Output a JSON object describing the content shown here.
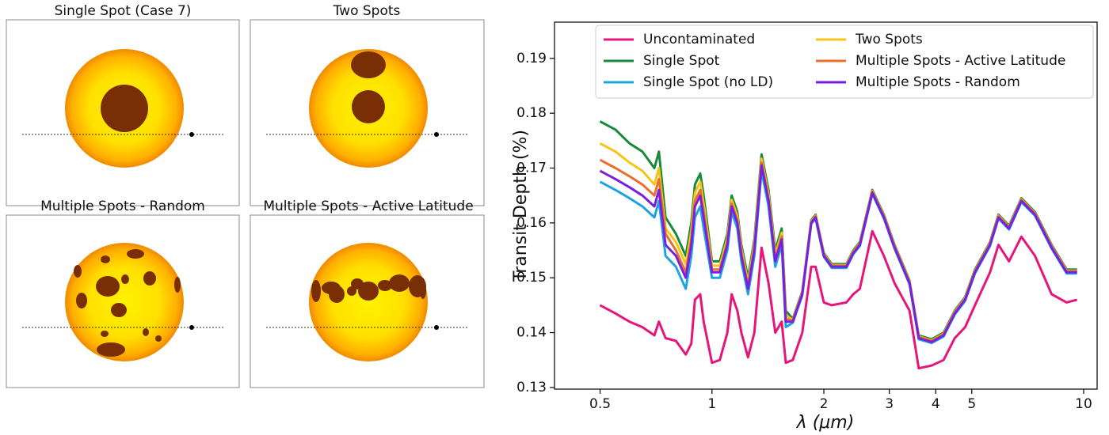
{
  "panels": [
    {
      "title": "Single Spot (Case 7)"
    },
    {
      "title": "Two Spots"
    },
    {
      "title": "Multiple Spots - Random"
    },
    {
      "title": "Multiple Spots - Active Latitude"
    }
  ],
  "chart_data": {
    "type": "line",
    "xlabel": "λ (μm)",
    "ylabel": "Transit Depth (%)",
    "xscale": "log",
    "xlim": [
      0.377,
      10.87
    ],
    "ylim": [
      0.1297,
      0.1966
    ],
    "xticks": [
      0.5,
      1,
      2,
      3,
      4,
      5,
      10
    ],
    "yticks": [
      0.13,
      0.14,
      0.15,
      0.16,
      0.17,
      0.18,
      0.19
    ],
    "legend": "upper right",
    "x": [
      0.5,
      0.55,
      0.6,
      0.65,
      0.7,
      0.72,
      0.75,
      0.8,
      0.85,
      0.88,
      0.9,
      0.93,
      0.95,
      1.0,
      1.05,
      1.1,
      1.13,
      1.17,
      1.2,
      1.25,
      1.3,
      1.36,
      1.42,
      1.48,
      1.54,
      1.58,
      1.65,
      1.75,
      1.85,
      1.9,
      2.0,
      2.1,
      2.3,
      2.4,
      2.5,
      2.7,
      2.9,
      3.1,
      3.4,
      3.6,
      3.9,
      4.2,
      4.5,
      4.8,
      5.1,
      5.6,
      5.9,
      6.3,
      6.8,
      7.4,
      8.2,
      9.0,
      9.6
    ],
    "series": [
      {
        "name": "Uncontaminated",
        "color": "#e6157a",
        "values": [
          0.145,
          0.1435,
          0.142,
          0.141,
          0.1395,
          0.142,
          0.139,
          0.1385,
          0.136,
          0.138,
          0.146,
          0.147,
          0.142,
          0.1345,
          0.135,
          0.14,
          0.147,
          0.144,
          0.14,
          0.1355,
          0.14,
          0.1555,
          0.149,
          0.14,
          0.142,
          0.1345,
          0.135,
          0.14,
          0.152,
          0.152,
          0.1455,
          0.145,
          0.1455,
          0.147,
          0.148,
          0.1585,
          0.154,
          0.149,
          0.144,
          0.1335,
          0.134,
          0.135,
          0.139,
          0.141,
          0.145,
          0.151,
          0.156,
          0.153,
          0.1575,
          0.154,
          0.147,
          0.1455,
          0.146
        ]
      },
      {
        "name": "Single Spot (no LD)",
        "color": "#1ca3e0",
        "values": [
          0.1675,
          0.166,
          0.1645,
          0.163,
          0.161,
          0.164,
          0.154,
          0.152,
          0.148,
          0.154,
          0.161,
          0.163,
          0.159,
          0.15,
          0.15,
          0.155,
          0.162,
          0.159,
          0.153,
          0.147,
          0.154,
          0.1695,
          0.163,
          0.152,
          0.156,
          0.141,
          0.1418,
          0.1468,
          0.1598,
          0.1608,
          0.1538,
          0.1518,
          0.1518,
          0.1543,
          0.1558,
          0.1653,
          0.1608,
          0.1553,
          0.1488,
          0.1388,
          0.1381,
          0.1393,
          0.1433,
          0.1458,
          0.1508,
          0.1558,
          0.1608,
          0.1588,
          0.1638,
          0.1613,
          0.1553,
          0.1508,
          0.1508
        ]
      },
      {
        "name": "Single Spot",
        "color": "#1a8a3a",
        "values": [
          0.1785,
          0.177,
          0.1745,
          0.173,
          0.17,
          0.173,
          0.161,
          0.158,
          0.154,
          0.16,
          0.167,
          0.169,
          0.165,
          0.153,
          0.153,
          0.158,
          0.165,
          0.162,
          0.156,
          0.15,
          0.157,
          0.1725,
          0.166,
          0.155,
          0.159,
          0.144,
          0.1425,
          0.1475,
          0.1605,
          0.1615,
          0.1545,
          0.1525,
          0.1525,
          0.155,
          0.1565,
          0.166,
          0.1615,
          0.156,
          0.1495,
          0.1395,
          0.1388,
          0.14,
          0.144,
          0.1465,
          0.1515,
          0.1565,
          0.1615,
          0.1595,
          0.1645,
          0.162,
          0.156,
          0.1515,
          0.1515
        ]
      },
      {
        "name": "Two Spots",
        "color": "#f5c518",
        "values": [
          0.1745,
          0.173,
          0.171,
          0.1695,
          0.167,
          0.17,
          0.159,
          0.1565,
          0.1525,
          0.1585,
          0.1655,
          0.1675,
          0.1635,
          0.1522,
          0.1522,
          0.1572,
          0.1642,
          0.1612,
          0.1552,
          0.1492,
          0.1562,
          0.1717,
          0.1652,
          0.1542,
          0.1582,
          0.1432,
          0.1423,
          0.1473,
          0.1603,
          0.1613,
          0.1543,
          0.1523,
          0.1523,
          0.1548,
          0.1563,
          0.1658,
          0.1613,
          0.1558,
          0.1493,
          0.1393,
          0.1386,
          0.1398,
          0.1438,
          0.1463,
          0.1513,
          0.1563,
          0.1613,
          0.1593,
          0.1643,
          0.1618,
          0.1558,
          0.1513,
          0.1513
        ]
      },
      {
        "name": "Multiple Spots - Active Latitude",
        "color": "#e8702a",
        "values": [
          0.1715,
          0.17,
          0.1685,
          0.167,
          0.165,
          0.168,
          0.158,
          0.155,
          0.151,
          0.157,
          0.164,
          0.166,
          0.162,
          0.1515,
          0.1515,
          0.1565,
          0.1635,
          0.1605,
          0.1545,
          0.1485,
          0.1555,
          0.171,
          0.1645,
          0.1535,
          0.1575,
          0.1425,
          0.1422,
          0.1472,
          0.1602,
          0.1612,
          0.1542,
          0.1522,
          0.1522,
          0.1547,
          0.1562,
          0.1657,
          0.1612,
          0.1557,
          0.1492,
          0.1392,
          0.1385,
          0.1397,
          0.1437,
          0.1462,
          0.1512,
          0.1562,
          0.1612,
          0.1592,
          0.1642,
          0.1617,
          0.1557,
          0.1512,
          0.1512
        ]
      },
      {
        "name": "Multiple Spots - Random",
        "color": "#7a1fe0",
        "values": [
          0.1695,
          0.168,
          0.1665,
          0.165,
          0.163,
          0.166,
          0.156,
          0.154,
          0.15,
          0.156,
          0.163,
          0.165,
          0.161,
          0.151,
          0.151,
          0.156,
          0.163,
          0.16,
          0.154,
          0.148,
          0.155,
          0.1705,
          0.164,
          0.153,
          0.157,
          0.142,
          0.142,
          0.147,
          0.16,
          0.161,
          0.154,
          0.152,
          0.152,
          0.1545,
          0.156,
          0.1655,
          0.161,
          0.1555,
          0.149,
          0.139,
          0.1383,
          0.1395,
          0.1435,
          0.146,
          0.151,
          0.156,
          0.161,
          0.159,
          0.164,
          0.1615,
          0.1555,
          0.151,
          0.151
        ]
      }
    ]
  }
}
